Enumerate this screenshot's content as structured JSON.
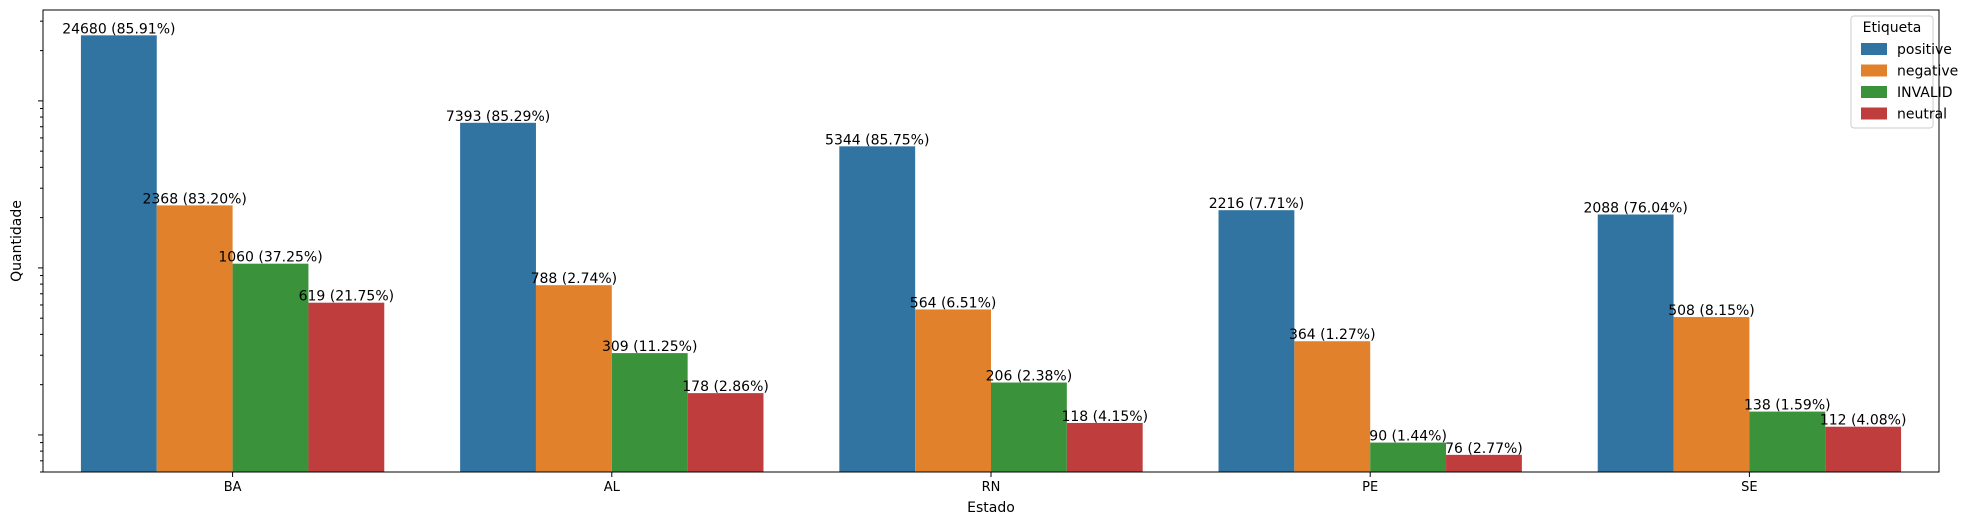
{
  "chart_data": {
    "type": "bar",
    "title": "",
    "xlabel": "Estado",
    "ylabel": "Quantidade",
    "yscale": "log",
    "ylim": [
      60,
      35000
    ],
    "grid": false,
    "legend": {
      "title": "Etiqueta",
      "placement": "top-right"
    },
    "categories": [
      "BA",
      "AL",
      "RN",
      "PE",
      "SE"
    ],
    "series": [
      {
        "name": "positive",
        "color": "#3274a1",
        "values": [
          24680,
          7393,
          5344,
          2216,
          2088
        ],
        "labels": [
          "24680 (85.91%)",
          "7393 (85.29%)",
          "5344 (85.75%)",
          "2216 (7.71%)",
          "2088 (76.04%)"
        ]
      },
      {
        "name": "negative",
        "color": "#e1812c",
        "values": [
          2368,
          788,
          564,
          364,
          508
        ],
        "labels": [
          "2368 (83.20%)",
          "788 (2.74%)",
          "564 (6.51%)",
          "364 (1.27%)",
          "508 (8.15%)"
        ]
      },
      {
        "name": "INVALID",
        "color": "#3a923a",
        "values": [
          1060,
          309,
          206,
          90,
          138
        ],
        "labels": [
          "1060 (37.25%)",
          "309 (11.25%)",
          "206 (2.38%)",
          "90 (1.44%)",
          "138 (1.59%)"
        ]
      },
      {
        "name": "neutral",
        "color": "#c03d3e",
        "values": [
          619,
          178,
          118,
          76,
          112
        ],
        "labels": [
          "619 (21.75%)",
          "178 (2.86%)",
          "118 (4.15%)",
          "76 (2.77%)",
          "112 (4.08%)"
        ]
      }
    ]
  }
}
